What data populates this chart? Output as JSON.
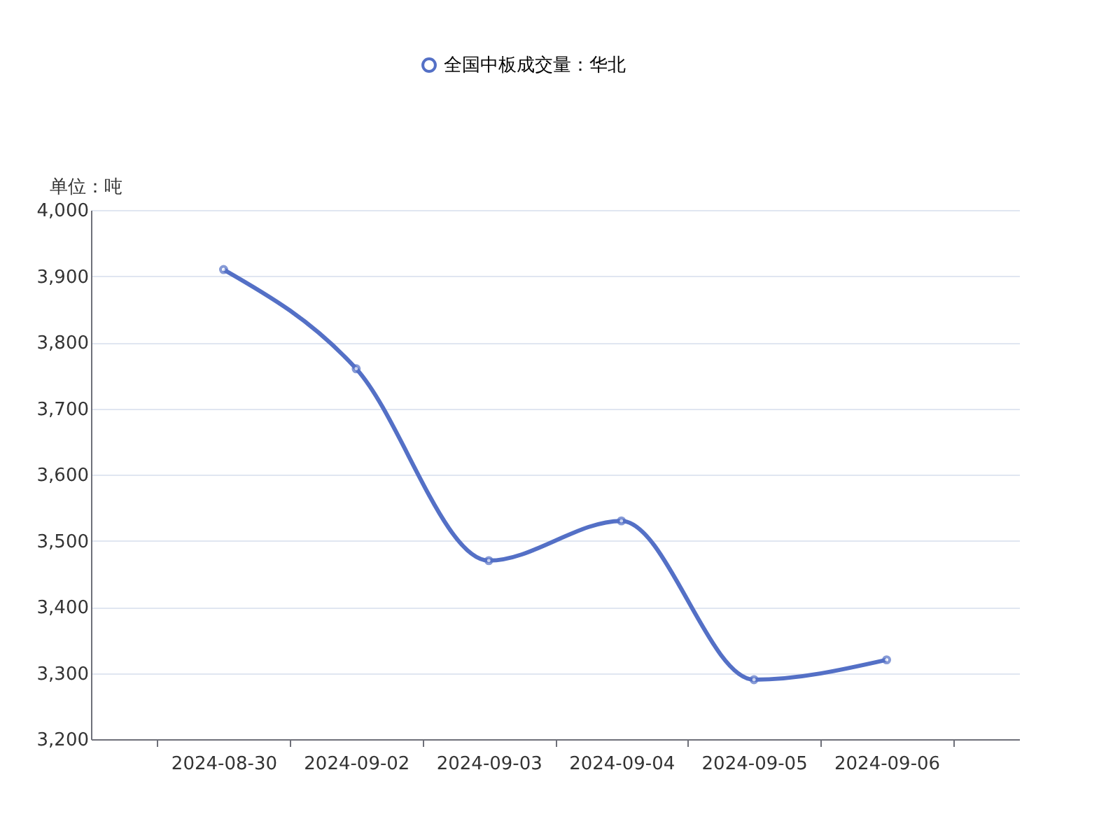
{
  "chart_data": {
    "type": "line",
    "ylabel": "单位：吨",
    "categories": [
      "2024-08-30",
      "2024-09-02",
      "2024-09-03",
      "2024-09-04",
      "2024-09-05",
      "2024-09-06"
    ],
    "series": [
      {
        "name": "全国中板成交量：华北",
        "color": "#5470c6",
        "values": [
          3910,
          3760,
          3470,
          3530,
          3290,
          3320
        ]
      }
    ],
    "ylim": [
      3200,
      4000
    ],
    "yticks": [
      {
        "value": 3200,
        "label": "3,200"
      },
      {
        "value": 3300,
        "label": "3,300"
      },
      {
        "value": 3400,
        "label": "3,400"
      },
      {
        "value": 3500,
        "label": "3,500"
      },
      {
        "value": 3600,
        "label": "3,600"
      },
      {
        "value": 3700,
        "label": "3,700"
      },
      {
        "value": 3800,
        "label": "3,800"
      },
      {
        "value": 3900,
        "label": "3,900"
      },
      {
        "value": 4000,
        "label": "4,000"
      }
    ],
    "grid": "y",
    "legend": "top",
    "marker": "circle",
    "line_style": "solid"
  }
}
